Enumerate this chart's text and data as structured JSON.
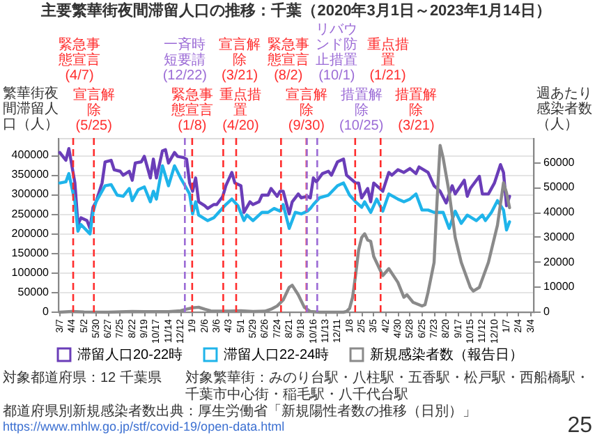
{
  "chart_data": {
    "type": "line",
    "title": "主要繁華街夜間滞留人口の推移：千葉（2020年3月1日～2023年1月14日）",
    "ylabel": "繁華街夜間滞留人口（人）",
    "y2label": "週あたり感染者数（人）",
    "xlim": [
      "2020-03-04",
      "2023-03-11"
    ],
    "xticks": [
      {
        "value": "2020-03-07",
        "label": "3/7"
      },
      {
        "value": "2020-04-04",
        "label": "4/4"
      },
      {
        "value": "2020-05-02",
        "label": "5/2"
      },
      {
        "value": "2020-05-30",
        "label": "5/30"
      },
      {
        "value": "2020-06-27",
        "label": "6/27"
      },
      {
        "value": "2020-07-25",
        "label": "7/25"
      },
      {
        "value": "2020-08-22",
        "label": "8/22"
      },
      {
        "value": "2020-09-19",
        "label": "9/19"
      },
      {
        "value": "2020-10-17",
        "label": "10/17"
      },
      {
        "value": "2020-11-14",
        "label": "11/14"
      },
      {
        "value": "2020-12-12",
        "label": "12/12"
      },
      {
        "value": "2021-01-09",
        "label": "1/9"
      },
      {
        "value": "2021-02-06",
        "label": "2/6"
      },
      {
        "value": "2021-03-06",
        "label": "3/6"
      },
      {
        "value": "2021-04-03",
        "label": "4/3"
      },
      {
        "value": "2021-05-01",
        "label": "5/1"
      },
      {
        "value": "2021-05-29",
        "label": "5/29"
      },
      {
        "value": "2021-06-26",
        "label": "6/26"
      },
      {
        "value": "2021-07-24",
        "label": "7/24"
      },
      {
        "value": "2021-08-21",
        "label": "8/21"
      },
      {
        "value": "2021-09-18",
        "label": "9/18"
      },
      {
        "value": "2021-10-16",
        "label": "10/16"
      },
      {
        "value": "2021-11-13",
        "label": "11/13"
      },
      {
        "value": "2021-12-11",
        "label": "12/11"
      },
      {
        "value": "2022-01-08",
        "label": "1/8"
      },
      {
        "value": "2022-02-05",
        "label": "2/5"
      },
      {
        "value": "2022-03-05",
        "label": "3/5"
      },
      {
        "value": "2022-04-02",
        "label": "4/2"
      },
      {
        "value": "2022-04-30",
        "label": "4/30"
      },
      {
        "value": "2022-05-28",
        "label": "5/28"
      },
      {
        "value": "2022-06-25",
        "label": "6/25"
      },
      {
        "value": "2022-07-23",
        "label": "7/23"
      },
      {
        "value": "2022-08-20",
        "label": "8/20"
      },
      {
        "value": "2022-09-17",
        "label": "9/17"
      },
      {
        "value": "2022-10-15",
        "label": "10/15"
      },
      {
        "value": "2022-11-12",
        "label": "11/12"
      },
      {
        "value": "2022-12-10",
        "label": "12/10"
      },
      {
        "value": "2023-01-07",
        "label": "1/7"
      },
      {
        "value": "2023-02-04",
        "label": "2/4"
      },
      {
        "value": "2023-03-04",
        "label": "3/4"
      }
    ],
    "ylim": [
      0,
      445000
    ],
    "yticks": [
      0,
      50000,
      100000,
      150000,
      200000,
      250000,
      300000,
      350000,
      400000
    ],
    "y2lim": [
      0,
      70000
    ],
    "y2ticks": [
      0,
      10000,
      20000,
      30000,
      40000,
      50000,
      60000
    ],
    "grid": "y",
    "legend": "bottom",
    "series": [
      {
        "name": "滞留人口20-22時",
        "color": "#6a3db8",
        "x": [
          "2020-03-07",
          "2020-03-21",
          "2020-03-28",
          "2020-04-11",
          "2020-04-18",
          "2020-04-25",
          "2020-05-09",
          "2020-05-16",
          "2020-05-23",
          "2020-05-30",
          "2020-06-13",
          "2020-06-20",
          "2020-07-04",
          "2020-07-11",
          "2020-07-25",
          "2020-08-01",
          "2020-08-15",
          "2020-08-22",
          "2020-08-29",
          "2020-09-12",
          "2020-09-19",
          "2020-10-03",
          "2020-10-10",
          "2020-10-17",
          "2020-10-31",
          "2020-11-07",
          "2020-11-14",
          "2020-11-28",
          "2020-12-05",
          "2020-12-19",
          "2020-12-26",
          "2021-01-02",
          "2021-01-09",
          "2021-01-16",
          "2021-01-23",
          "2021-02-06",
          "2021-02-13",
          "2021-02-27",
          "2021-03-06",
          "2021-03-20",
          "2021-03-27",
          "2021-04-10",
          "2021-04-17",
          "2021-05-01",
          "2021-05-08",
          "2021-05-22",
          "2021-05-29",
          "2021-06-12",
          "2021-06-19",
          "2021-07-03",
          "2021-07-10",
          "2021-07-24",
          "2021-07-31",
          "2021-08-07",
          "2021-08-21",
          "2021-08-28",
          "2021-09-11",
          "2021-09-18",
          "2021-10-02",
          "2021-10-09",
          "2021-10-16",
          "2021-10-23",
          "2021-11-06",
          "2021-11-20",
          "2021-11-27",
          "2021-12-11",
          "2021-12-25",
          "2022-01-01",
          "2022-01-22",
          "2022-01-29",
          "2022-02-05",
          "2022-02-19",
          "2022-02-26",
          "2022-03-05",
          "2022-03-19",
          "2022-03-26",
          "2022-04-09",
          "2022-04-16",
          "2022-04-30",
          "2022-05-14",
          "2022-05-28",
          "2022-06-11",
          "2022-06-18",
          "2022-07-09",
          "2022-07-23",
          "2022-08-06",
          "2022-08-20",
          "2022-09-03",
          "2022-09-10",
          "2022-10-01",
          "2022-10-08",
          "2022-10-15",
          "2022-11-05",
          "2022-11-12",
          "2022-11-26",
          "2022-12-10",
          "2022-12-24",
          "2022-12-31",
          "2023-01-07",
          "2023-01-14"
        ],
        "values": [
          408000,
          388000,
          418000,
          330000,
          224000,
          241000,
          234000,
          214000,
          268000,
          282000,
          330000,
          384000,
          388000,
          364000,
          360000,
          350000,
          360000,
          337000,
          381000,
          384000,
          398000,
          343000,
          391000,
          343000,
          412000,
          415000,
          381000,
          408000,
          398000,
          395000,
          391000,
          330000,
          309000,
          343000,
          282000,
          272000,
          265000,
          275000,
          275000,
          296000,
          323000,
          357000,
          330000,
          323000,
          255000,
          282000,
          275000,
          282000,
          299000,
          299000,
          316000,
          296000,
          309000,
          309000,
          251000,
          282000,
          302000,
          292000,
          296000,
          292000,
          343000,
          333000,
          354000,
          360000,
          350000,
          384000,
          391000,
          350000,
          330000,
          330000,
          292000,
          316000,
          282000,
          330000,
          316000,
          309000,
          357000,
          350000,
          364000,
          357000,
          367000,
          354000,
          371000,
          357000,
          323000,
          309000,
          279000,
          323000,
          302000,
          337000,
          296000,
          316000,
          347000,
          302000,
          302000,
          330000,
          377000,
          357000,
          272000,
          296000
        ]
      },
      {
        "name": "滞留人口22-24時",
        "color": "#1fb4ea",
        "x": [
          "2020-03-07",
          "2020-03-21",
          "2020-03-28",
          "2020-04-11",
          "2020-04-18",
          "2020-04-25",
          "2020-05-16",
          "2020-05-23",
          "2020-05-30",
          "2020-06-20",
          "2020-07-04",
          "2020-07-18",
          "2020-08-01",
          "2020-08-15",
          "2020-08-22",
          "2020-09-05",
          "2020-09-19",
          "2020-10-03",
          "2020-10-10",
          "2020-10-17",
          "2020-10-31",
          "2020-11-14",
          "2020-11-28",
          "2020-12-12",
          "2020-12-26",
          "2021-01-02",
          "2021-01-09",
          "2021-01-16",
          "2021-01-23",
          "2021-02-13",
          "2021-02-27",
          "2021-03-13",
          "2021-03-27",
          "2021-04-10",
          "2021-04-24",
          "2021-05-08",
          "2021-05-15",
          "2021-05-29",
          "2021-06-19",
          "2021-07-03",
          "2021-07-17",
          "2021-07-31",
          "2021-08-07",
          "2021-08-21",
          "2021-09-04",
          "2021-09-18",
          "2021-10-02",
          "2021-10-09",
          "2021-10-16",
          "2021-10-30",
          "2021-11-20",
          "2021-12-11",
          "2021-12-25",
          "2022-01-08",
          "2022-01-22",
          "2022-02-05",
          "2022-02-12",
          "2022-02-26",
          "2022-03-12",
          "2022-03-26",
          "2022-04-09",
          "2022-04-30",
          "2022-05-14",
          "2022-05-28",
          "2022-06-11",
          "2022-06-25",
          "2022-07-09",
          "2022-07-23",
          "2022-08-13",
          "2022-08-27",
          "2022-09-10",
          "2022-09-24",
          "2022-10-08",
          "2022-10-29",
          "2022-11-12",
          "2022-11-19",
          "2022-12-03",
          "2022-12-17",
          "2022-12-31",
          "2023-01-07",
          "2023-01-14"
        ],
        "values": [
          330000,
          333000,
          354000,
          282000,
          207000,
          224000,
          200000,
          255000,
          282000,
          323000,
          326000,
          299000,
          296000,
          316000,
          285000,
          313000,
          320000,
          282000,
          309000,
          289000,
          374000,
          323000,
          374000,
          343000,
          316000,
          302000,
          251000,
          282000,
          248000,
          234000,
          241000,
          258000,
          275000,
          289000,
          272000,
          234000,
          248000,
          234000,
          255000,
          255000,
          265000,
          258000,
          275000,
          214000,
          255000,
          251000,
          258000,
          265000,
          275000,
          292000,
          299000,
          323000,
          330000,
          299000,
          282000,
          268000,
          282000,
          255000,
          289000,
          258000,
          302000,
          289000,
          282000,
          289000,
          302000,
          261000,
          261000,
          255000,
          255000,
          214000,
          258000,
          227000,
          248000,
          234000,
          248000,
          234000,
          255000,
          285000,
          261000,
          210000,
          231000
        ]
      },
      {
        "name": "新規感染者数（報告日）",
        "color": "#8a8a8a",
        "axis": "y2",
        "x": [
          "2020-03-07",
          "2020-04-04",
          "2020-05-02",
          "2020-06-27",
          "2020-08-22",
          "2020-09-19",
          "2020-11-14",
          "2020-12-12",
          "2020-12-26",
          "2021-01-09",
          "2021-01-23",
          "2021-02-06",
          "2021-02-20",
          "2021-03-06",
          "2021-04-03",
          "2021-05-01",
          "2021-05-29",
          "2021-06-26",
          "2021-07-10",
          "2021-07-24",
          "2021-08-07",
          "2021-08-21",
          "2021-08-28",
          "2021-09-11",
          "2021-09-25",
          "2021-10-09",
          "2021-10-30",
          "2021-12-25",
          "2022-01-01",
          "2022-01-08",
          "2022-01-15",
          "2022-01-22",
          "2022-01-29",
          "2022-02-05",
          "2022-02-12",
          "2022-02-19",
          "2022-02-26",
          "2022-03-05",
          "2022-03-26",
          "2022-04-09",
          "2022-04-30",
          "2022-05-14",
          "2022-05-21",
          "2022-06-04",
          "2022-06-25",
          "2022-07-02",
          "2022-07-09",
          "2022-07-23",
          "2022-07-30",
          "2022-08-06",
          "2022-08-13",
          "2022-08-27",
          "2022-09-10",
          "2022-09-24",
          "2022-10-15",
          "2022-10-22",
          "2022-11-05",
          "2022-11-26",
          "2022-12-17",
          "2022-12-31",
          "2023-01-07",
          "2023-01-14"
        ],
        "values": [
          0,
          300,
          100,
          0,
          300,
          200,
          200,
          600,
          1200,
          1800,
          2000,
          1200,
          500,
          400,
          400,
          600,
          300,
          400,
          1200,
          2500,
          4900,
          10000,
          10800,
          7000,
          2000,
          300,
          0,
          0,
          300,
          1500,
          6000,
          15000,
          25000,
          30000,
          31500,
          29000,
          28500,
          22400,
          14700,
          17500,
          12000,
          6000,
          7000,
          4000,
          2500,
          3000,
          8000,
          20000,
          45000,
          67000,
          62000,
          48000,
          30000,
          20000,
          10000,
          8500,
          10000,
          20000,
          35000,
          52000,
          48000,
          42000
        ]
      }
    ],
    "ref_lines": [
      {
        "axis": "x",
        "value": "2020-04-07",
        "label": "緊急事態宣言(4/7)",
        "color": "#ff2d2d",
        "line_style": "dashed"
      },
      {
        "axis": "x",
        "value": "2020-05-25",
        "label": "宣言解除(5/25)",
        "color": "#ff2d2d",
        "line_style": "dashed"
      },
      {
        "axis": "x",
        "value": "2020-12-22",
        "label": "一斉時短要請(12/22)",
        "color": "#9b6bd6",
        "line_style": "dashed"
      },
      {
        "axis": "x",
        "value": "2021-01-08",
        "label": "緊急事態宣言(1/8)",
        "color": "#ff2d2d",
        "line_style": "dashed"
      },
      {
        "axis": "x",
        "value": "2021-03-21",
        "label": "宣言解除(3/21)",
        "color": "#ff2d2d",
        "line_style": "dashed"
      },
      {
        "axis": "x",
        "value": "2021-04-20",
        "label": "重点措置(4/20)",
        "color": "#ff2d2d",
        "line_style": "dashed"
      },
      {
        "axis": "x",
        "value": "2021-08-02",
        "label": "緊急事態宣言(8/2)",
        "color": "#ff2d2d",
        "line_style": "dashed"
      },
      {
        "axis": "x",
        "value": "2021-09-30",
        "label": "宣言解除(9/30)",
        "color": "#ff2d2d",
        "line_style": "dashed"
      },
      {
        "axis": "x",
        "value": "2021-10-01",
        "label": "リバウンド防止措置(10/1)",
        "color": "#9b6bd6",
        "line_style": "dashed"
      },
      {
        "axis": "x",
        "value": "2021-10-25",
        "label": "措置解除(10/25)",
        "color": "#9b6bd6",
        "line_style": "dashed"
      },
      {
        "axis": "x",
        "value": "2022-01-21",
        "label": "重点措置(1/21)",
        "color": "#ff2d2d",
        "line_style": "dashed"
      },
      {
        "axis": "x",
        "value": "2022-03-21",
        "label": "措置解除(3/21)",
        "color": "#ff2d2d",
        "line_style": "dashed"
      }
    ],
    "annotations": [
      "対象都道府県：12 千葉県",
      "対象繁華街：みのり台駅・八柱駅・五香駅・松戸駅・西船橋駅・千葉市中心街・稲毛駅・八千代台駅",
      "都道府県別新規感染者数出典：厚生労働省「新規陽性者数の推移（日別）」",
      "https://www.mhlw.go.jp/stf/covid-19/open-data.html",
      "25"
    ]
  }
}
